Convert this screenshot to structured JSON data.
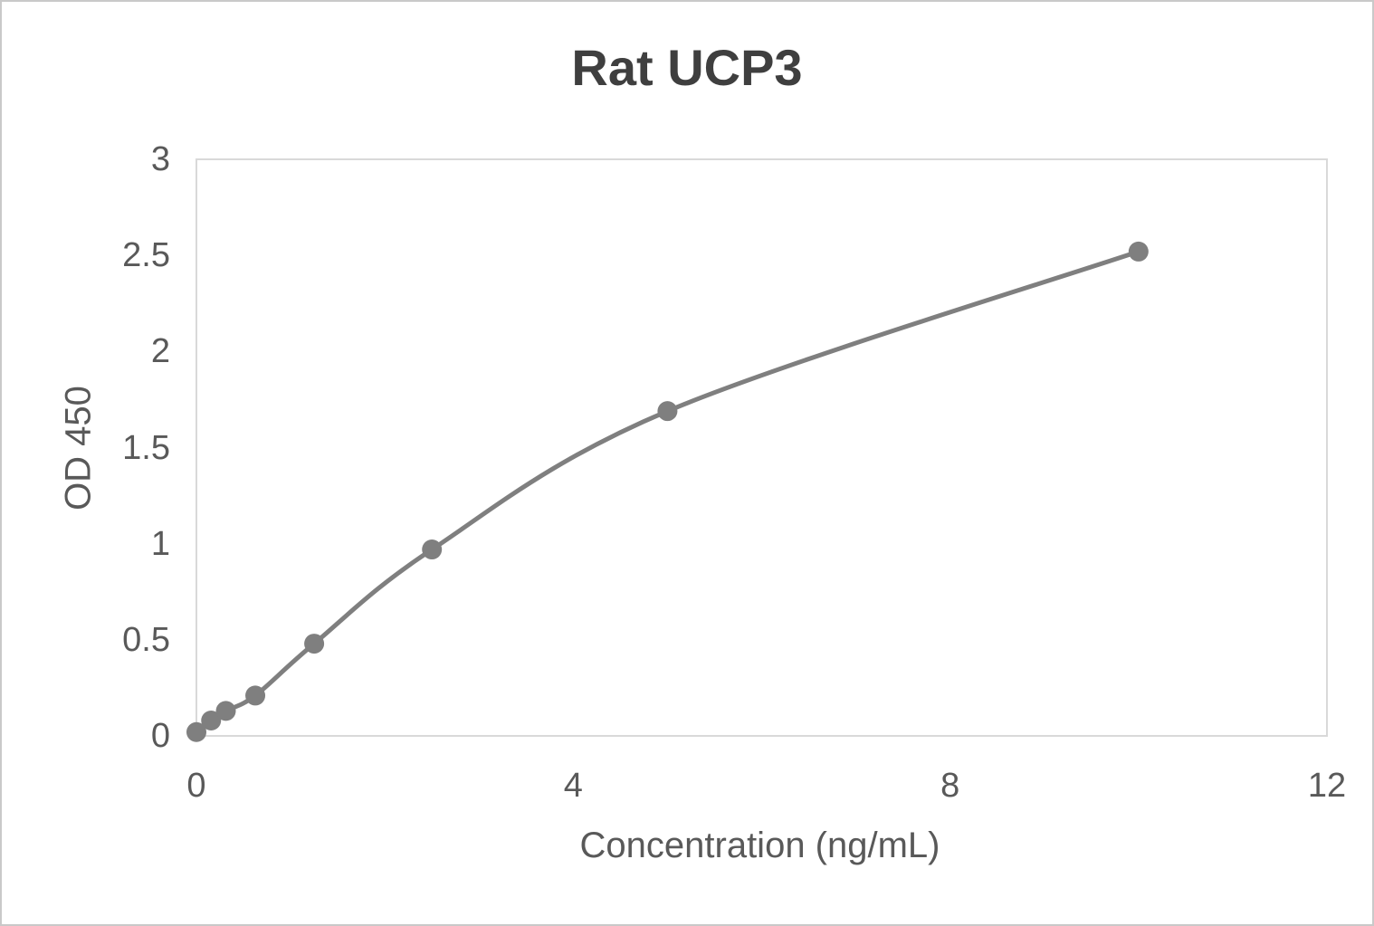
{
  "page": {
    "background": "#ffffff",
    "outer_border_color": "#c9c9c9"
  },
  "chart_data": {
    "type": "scatter",
    "title": "Rat UCP3",
    "xlabel": "Concentration (ng/mL)",
    "ylabel": "OD 450",
    "x": [
      0,
      0.156,
      0.3125,
      0.625,
      1.25,
      2.5,
      5,
      10
    ],
    "y": [
      0.02,
      0.08,
      0.13,
      0.21,
      0.48,
      0.97,
      1.69,
      2.52
    ],
    "xlim": [
      0,
      12
    ],
    "ylim": [
      0,
      3
    ],
    "x_ticks": [
      0,
      4,
      8,
      12
    ],
    "y_ticks": [
      0,
      0.5,
      1,
      1.5,
      2,
      2.5,
      3
    ],
    "grid": false,
    "legend": false,
    "line_style": "smooth",
    "line_color": "#7f7f7f",
    "marker_color": "#7f7f7f",
    "plot_border_color": "#d9d9d9"
  },
  "style": {
    "title_color": "#3f3f3f",
    "label_color": "#595959"
  }
}
